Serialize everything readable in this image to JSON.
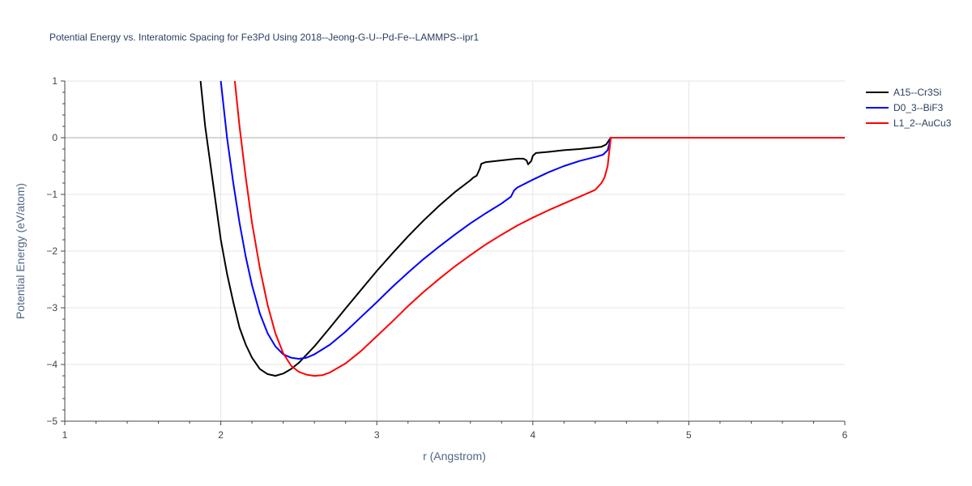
{
  "chart_data": {
    "type": "line",
    "title": "Potential Energy vs. Interatomic Spacing for Fe3Pd Using 2018--Jeong-G-U--Pd-Fe--LAMMPS--ipr1",
    "xlabel": "r (Angstrom)",
    "ylabel": "Potential Energy (eV/atom)",
    "xlim": [
      1,
      6
    ],
    "ylim": [
      -5,
      1
    ],
    "xticks": [
      1,
      2,
      3,
      4,
      5,
      6
    ],
    "yticks": [
      1,
      0,
      -1,
      -2,
      -3,
      -4,
      -5
    ],
    "ytick_labels": [
      "1",
      "0",
      "−1",
      "−2",
      "−3",
      "−4",
      "−5"
    ],
    "grid": true,
    "legend_position": "top-right",
    "series": [
      {
        "name": "A15--Cr3Si",
        "color": "#000000",
        "x": [
          1.87,
          1.9,
          1.93,
          1.96,
          2.0,
          2.04,
          2.08,
          2.12,
          2.16,
          2.2,
          2.25,
          2.3,
          2.35,
          2.4,
          2.45,
          2.5,
          2.6,
          2.7,
          2.8,
          2.9,
          3.0,
          3.1,
          3.2,
          3.3,
          3.4,
          3.5,
          3.6,
          3.62,
          3.64,
          3.66,
          3.67,
          3.7,
          3.8,
          3.9,
          3.94,
          3.96,
          3.97,
          3.99,
          4.0,
          4.02,
          4.1,
          4.2,
          4.3,
          4.44,
          4.47,
          4.5,
          4.6,
          4.8,
          5.0,
          5.5,
          6.0
        ],
        "y": [
          1.0,
          0.2,
          -0.4,
          -1.0,
          -1.8,
          -2.4,
          -2.9,
          -3.35,
          -3.65,
          -3.88,
          -4.08,
          -4.17,
          -4.2,
          -4.16,
          -4.08,
          -3.97,
          -3.68,
          -3.35,
          -3.01,
          -2.68,
          -2.35,
          -2.04,
          -1.74,
          -1.46,
          -1.2,
          -0.96,
          -0.75,
          -0.7,
          -0.67,
          -0.55,
          -0.46,
          -0.43,
          -0.4,
          -0.37,
          -0.37,
          -0.4,
          -0.47,
          -0.41,
          -0.32,
          -0.27,
          -0.25,
          -0.22,
          -0.2,
          -0.16,
          -0.12,
          0.0,
          0.0,
          0.0,
          0.0,
          0.0,
          0.0
        ]
      },
      {
        "name": "D0_3--BiF3",
        "color": "#0000ff",
        "x": [
          2.0,
          2.04,
          2.08,
          2.12,
          2.16,
          2.2,
          2.25,
          2.3,
          2.35,
          2.4,
          2.45,
          2.5,
          2.55,
          2.6,
          2.7,
          2.8,
          2.9,
          3.0,
          3.1,
          3.2,
          3.3,
          3.4,
          3.5,
          3.6,
          3.7,
          3.8,
          3.86,
          3.88,
          3.9,
          4.0,
          4.1,
          4.2,
          4.3,
          4.4,
          4.45,
          4.48,
          4.5,
          4.6,
          4.8,
          5.0,
          5.5,
          6.0
        ],
        "y": [
          1.0,
          0.0,
          -0.8,
          -1.5,
          -2.1,
          -2.6,
          -3.1,
          -3.45,
          -3.68,
          -3.82,
          -3.88,
          -3.9,
          -3.88,
          -3.82,
          -3.65,
          -3.42,
          -3.16,
          -2.9,
          -2.63,
          -2.38,
          -2.14,
          -1.92,
          -1.71,
          -1.51,
          -1.33,
          -1.16,
          -1.04,
          -0.93,
          -0.88,
          -0.74,
          -0.61,
          -0.5,
          -0.41,
          -0.34,
          -0.3,
          -0.22,
          0.0,
          0.0,
          0.0,
          0.0,
          0.0,
          0.0
        ]
      },
      {
        "name": "L1_2--AuCu3",
        "color": "#ff0000",
        "x": [
          2.09,
          2.12,
          2.16,
          2.2,
          2.25,
          2.3,
          2.35,
          2.4,
          2.45,
          2.5,
          2.55,
          2.6,
          2.65,
          2.7,
          2.8,
          2.9,
          3.0,
          3.1,
          3.2,
          3.3,
          3.4,
          3.5,
          3.6,
          3.7,
          3.8,
          3.9,
          4.0,
          4.1,
          4.2,
          4.3,
          4.4,
          4.44,
          4.46,
          4.48,
          4.5,
          4.6,
          4.8,
          5.0,
          5.5,
          6.0
        ],
        "y": [
          1.0,
          0.2,
          -0.7,
          -1.5,
          -2.3,
          -2.95,
          -3.45,
          -3.8,
          -4.02,
          -4.13,
          -4.18,
          -4.2,
          -4.19,
          -4.14,
          -3.98,
          -3.76,
          -3.5,
          -3.24,
          -2.97,
          -2.72,
          -2.49,
          -2.27,
          -2.07,
          -1.88,
          -1.71,
          -1.55,
          -1.41,
          -1.28,
          -1.16,
          -1.04,
          -0.92,
          -0.8,
          -0.7,
          -0.5,
          0.0,
          0.0,
          0.0,
          0.0,
          0.0,
          0.0
        ]
      }
    ]
  }
}
